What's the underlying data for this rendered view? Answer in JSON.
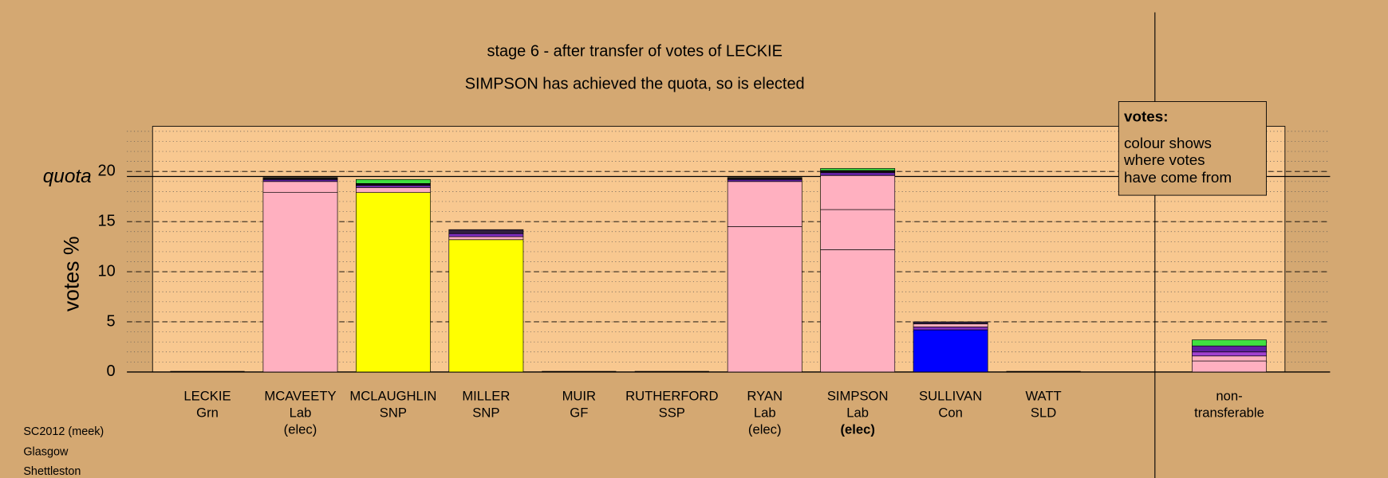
{
  "chart_data": {
    "type": "stacked-bar",
    "title": "stage 6 - after transfer of votes of LECKIE",
    "subtitle": "SIMPSON has achieved the quota, so is elected",
    "y_label": "votes %",
    "quota_label": "quota",
    "quota": 19.5,
    "ylim": [
      0,
      24.5
    ],
    "yticks": [
      0,
      5,
      10,
      15,
      20
    ],
    "minor_grid_step": 1,
    "categories": [
      [
        "LECKIE",
        "Grn"
      ],
      [
        "MCAVEETY",
        "Lab",
        "(elec)"
      ],
      [
        "MCLAUGHLIN",
        "SNP"
      ],
      [
        "MILLER",
        "SNP"
      ],
      [
        "MUIR",
        "GF"
      ],
      [
        "RUTHERFORD",
        "SSP"
      ],
      [
        "RYAN",
        "Lab",
        "(elec)"
      ],
      [
        "SIMPSON",
        "Lab",
        "(elec)"
      ],
      [
        "SULLIVAN",
        "Con"
      ],
      [
        "WATT",
        "SLD"
      ],
      [
        "non-",
        "transferable"
      ]
    ],
    "bold_category": 7,
    "stacks": [
      [],
      [
        {
          "value": 17.9,
          "color": "#ffb0c0"
        },
        {
          "value": 1.1,
          "color": "#ffb0c0"
        },
        {
          "value": 0.2,
          "color": "#6020a0"
        },
        {
          "value": 0.2,
          "color": "#101010"
        }
      ],
      [
        {
          "value": 17.9,
          "color": "#ffff00"
        },
        {
          "value": 0.5,
          "color": "#ffb0c0"
        },
        {
          "value": 0.2,
          "color": "#8030c0"
        },
        {
          "value": 0.2,
          "color": "#101010"
        },
        {
          "value": 0.4,
          "color": "#40e040"
        }
      ],
      [
        {
          "value": 13.2,
          "color": "#ffff00"
        },
        {
          "value": 0.3,
          "color": "#ffb0c0"
        },
        {
          "value": 0.3,
          "color": "#8030c0"
        },
        {
          "value": 0.4,
          "color": "#302040"
        }
      ],
      [],
      [],
      [
        {
          "value": 14.5,
          "color": "#ffb0c0"
        },
        {
          "value": 4.5,
          "color": "#ffb0c0"
        },
        {
          "value": 0.2,
          "color": "#6020a0"
        },
        {
          "value": 0.2,
          "color": "#101010"
        }
      ],
      [
        {
          "value": 12.2,
          "color": "#ffb0c0"
        },
        {
          "value": 4.0,
          "color": "#ffb0c0"
        },
        {
          "value": 3.4,
          "color": "#ffb0c0"
        },
        {
          "value": 0.3,
          "color": "#6020a0"
        },
        {
          "value": 0.2,
          "color": "#101010"
        },
        {
          "value": 0.2,
          "color": "#40e040"
        }
      ],
      [
        {
          "value": 4.2,
          "color": "#0000ff"
        },
        {
          "value": 0.3,
          "color": "#8030c0"
        },
        {
          "value": 0.3,
          "color": "#ffb0c0"
        },
        {
          "value": 0.2,
          "color": "#302040"
        }
      ],
      [],
      [
        {
          "value": 1.1,
          "color": "#ffb0c0"
        },
        {
          "value": 0.5,
          "color": "#ffb0c0"
        },
        {
          "value": 0.4,
          "color": "#a040d0"
        },
        {
          "value": 0.6,
          "color": "#6020a0"
        },
        {
          "value": 0.6,
          "color": "#40e040"
        }
      ]
    ],
    "legend": {
      "title": "votes:",
      "lines": [
        "colour shows",
        "where votes",
        "have come from"
      ]
    },
    "footer": [
      "SC2012 (meek)",
      "Glasgow",
      "Shettleston"
    ]
  }
}
